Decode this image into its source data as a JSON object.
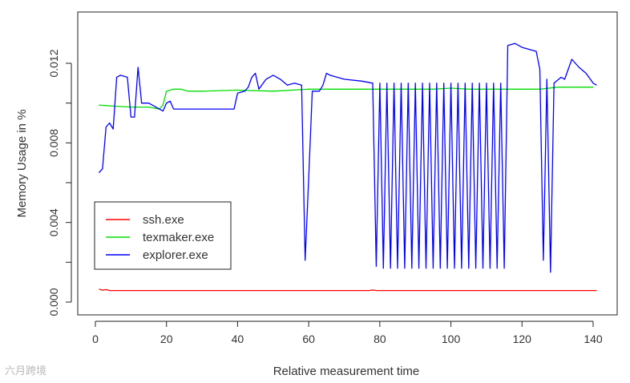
{
  "chart_data": {
    "type": "line",
    "xlabel": "Relative measurement time",
    "ylabel": "Memory Usage in %",
    "xlim": [
      0,
      142
    ],
    "ylim": [
      -0.0005,
      0.0145
    ],
    "x_ticks": [
      0,
      20,
      40,
      60,
      80,
      100,
      120,
      140
    ],
    "x_tick_labels": [
      "0",
      "20",
      "40",
      "60",
      "80",
      "100",
      "120",
      "140"
    ],
    "y_ticks": [
      0.0,
      0.004,
      0.008,
      0.012
    ],
    "y_tick_labels": [
      "0.000",
      "0.004",
      "0.008",
      "0.012"
    ],
    "grid": false,
    "legend_position": "bottom-left",
    "series": [
      {
        "name": "ssh.exe",
        "color": "#ff0000",
        "points": [
          [
            1,
            0.00065
          ],
          [
            2,
            0.0006
          ],
          [
            3,
            0.00063
          ],
          [
            4,
            0.00058
          ],
          [
            10,
            0.00058
          ],
          [
            40,
            0.00058
          ],
          [
            77,
            0.00058
          ],
          [
            78,
            0.00061
          ],
          [
            79,
            0.00058
          ],
          [
            141,
            0.00058
          ]
        ]
      },
      {
        "name": "texmaker.exe",
        "color": "#00dd00",
        "points": [
          [
            1,
            0.0099
          ],
          [
            5,
            0.00985
          ],
          [
            10,
            0.0098
          ],
          [
            15,
            0.0098
          ],
          [
            18,
            0.0097
          ],
          [
            19,
            0.0099
          ],
          [
            20,
            0.0106
          ],
          [
            22,
            0.0107
          ],
          [
            24,
            0.0107
          ],
          [
            26,
            0.0106
          ],
          [
            30,
            0.0106
          ],
          [
            40,
            0.01065
          ],
          [
            50,
            0.0106
          ],
          [
            60,
            0.0107
          ],
          [
            70,
            0.0107
          ],
          [
            80,
            0.0107
          ],
          [
            90,
            0.0107
          ],
          [
            95,
            0.0107
          ],
          [
            100,
            0.01075
          ],
          [
            105,
            0.0107
          ],
          [
            110,
            0.0107
          ],
          [
            120,
            0.0107
          ],
          [
            125,
            0.0107
          ],
          [
            130,
            0.0108
          ],
          [
            140,
            0.0108
          ]
        ]
      },
      {
        "name": "explorer.exe",
        "color": "#0000ff",
        "points": [
          [
            1,
            0.0065
          ],
          [
            2,
            0.0067
          ],
          [
            3,
            0.0088
          ],
          [
            4,
            0.009
          ],
          [
            5,
            0.0087
          ],
          [
            6,
            0.0113
          ],
          [
            7,
            0.0114
          ],
          [
            9,
            0.0113
          ],
          [
            10,
            0.0093
          ],
          [
            11,
            0.0093
          ],
          [
            12,
            0.0118
          ],
          [
            13,
            0.01
          ],
          [
            15,
            0.01
          ],
          [
            17,
            0.0098
          ],
          [
            19,
            0.0096
          ],
          [
            20,
            0.01
          ],
          [
            21,
            0.0101
          ],
          [
            22,
            0.0097
          ],
          [
            25,
            0.0097
          ],
          [
            30,
            0.0097
          ],
          [
            35,
            0.0097
          ],
          [
            39,
            0.0097
          ],
          [
            40,
            0.0105
          ],
          [
            42,
            0.0106
          ],
          [
            43,
            0.0108
          ],
          [
            44,
            0.0113
          ],
          [
            45,
            0.0115
          ],
          [
            46,
            0.0107
          ],
          [
            48,
            0.0112
          ],
          [
            50,
            0.0114
          ],
          [
            52,
            0.0112
          ],
          [
            54,
            0.0109
          ],
          [
            56,
            0.011
          ],
          [
            58,
            0.0109
          ],
          [
            59,
            0.0021
          ],
          [
            60,
            0.0062
          ],
          [
            61,
            0.0106
          ],
          [
            63,
            0.0106
          ],
          [
            64,
            0.0109
          ],
          [
            65,
            0.0115
          ],
          [
            66,
            0.0114
          ],
          [
            70,
            0.0112
          ],
          [
            75,
            0.0111
          ],
          [
            78,
            0.011
          ],
          [
            79,
            0.0018
          ],
          [
            80,
            0.011
          ],
          [
            81,
            0.0017
          ],
          [
            82,
            0.011
          ],
          [
            83,
            0.0017
          ],
          [
            84,
            0.011
          ],
          [
            85,
            0.0017
          ],
          [
            86,
            0.011
          ],
          [
            87,
            0.0017
          ],
          [
            88,
            0.011
          ],
          [
            89,
            0.0017
          ],
          [
            90,
            0.011
          ],
          [
            91,
            0.0017
          ],
          [
            92,
            0.011
          ],
          [
            93,
            0.0017
          ],
          [
            94,
            0.011
          ],
          [
            95,
            0.0017
          ],
          [
            96,
            0.011
          ],
          [
            97,
            0.0017
          ],
          [
            98,
            0.011
          ],
          [
            99,
            0.0017
          ],
          [
            100,
            0.011
          ],
          [
            101,
            0.0017
          ],
          [
            102,
            0.011
          ],
          [
            103,
            0.0017
          ],
          [
            104,
            0.011
          ],
          [
            105,
            0.0017
          ],
          [
            106,
            0.011
          ],
          [
            107,
            0.0017
          ],
          [
            108,
            0.011
          ],
          [
            109,
            0.0017
          ],
          [
            110,
            0.011
          ],
          [
            111,
            0.0017
          ],
          [
            112,
            0.011
          ],
          [
            113,
            0.0017
          ],
          [
            114,
            0.011
          ],
          [
            115,
            0.0017
          ],
          [
            116,
            0.0129
          ],
          [
            118,
            0.013
          ],
          [
            120,
            0.0128
          ],
          [
            122,
            0.0127
          ],
          [
            124,
            0.0126
          ],
          [
            125,
            0.0117
          ],
          [
            126,
            0.0021
          ],
          [
            127,
            0.0112
          ],
          [
            128,
            0.0015
          ],
          [
            129,
            0.011
          ],
          [
            131,
            0.0113
          ],
          [
            132,
            0.0112
          ],
          [
            134,
            0.0122
          ],
          [
            136,
            0.0118
          ],
          [
            138,
            0.0115
          ],
          [
            140,
            0.011
          ],
          [
            141,
            0.0109
          ]
        ]
      }
    ]
  },
  "watermark_text": "六月跨境"
}
